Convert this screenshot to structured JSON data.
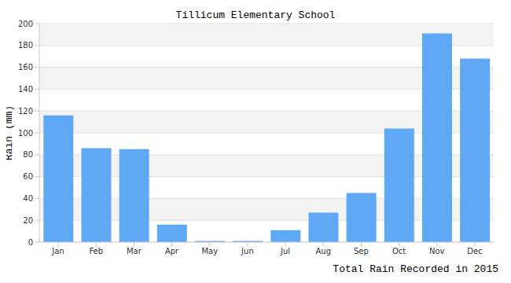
{
  "chart_data": {
    "type": "bar",
    "title": "Tillicum Elementary School",
    "x_label": "Total Rain Recorded in 2015",
    "y_label": "Rain (mm)",
    "categories": [
      "Jan",
      "Feb",
      "Mar",
      "Apr",
      "May",
      "Jun",
      "Jul",
      "Aug",
      "Sep",
      "Oct",
      "Nov",
      "Dec"
    ],
    "values": [
      116,
      86,
      85,
      16,
      1,
      1,
      11,
      27,
      45,
      104,
      191,
      168
    ],
    "color": "#5fa8f5",
    "ylim": [
      0,
      200
    ],
    "yticks": [
      0,
      20,
      40,
      60,
      80,
      100,
      120,
      140,
      160,
      180,
      200
    ],
    "grid": true
  }
}
